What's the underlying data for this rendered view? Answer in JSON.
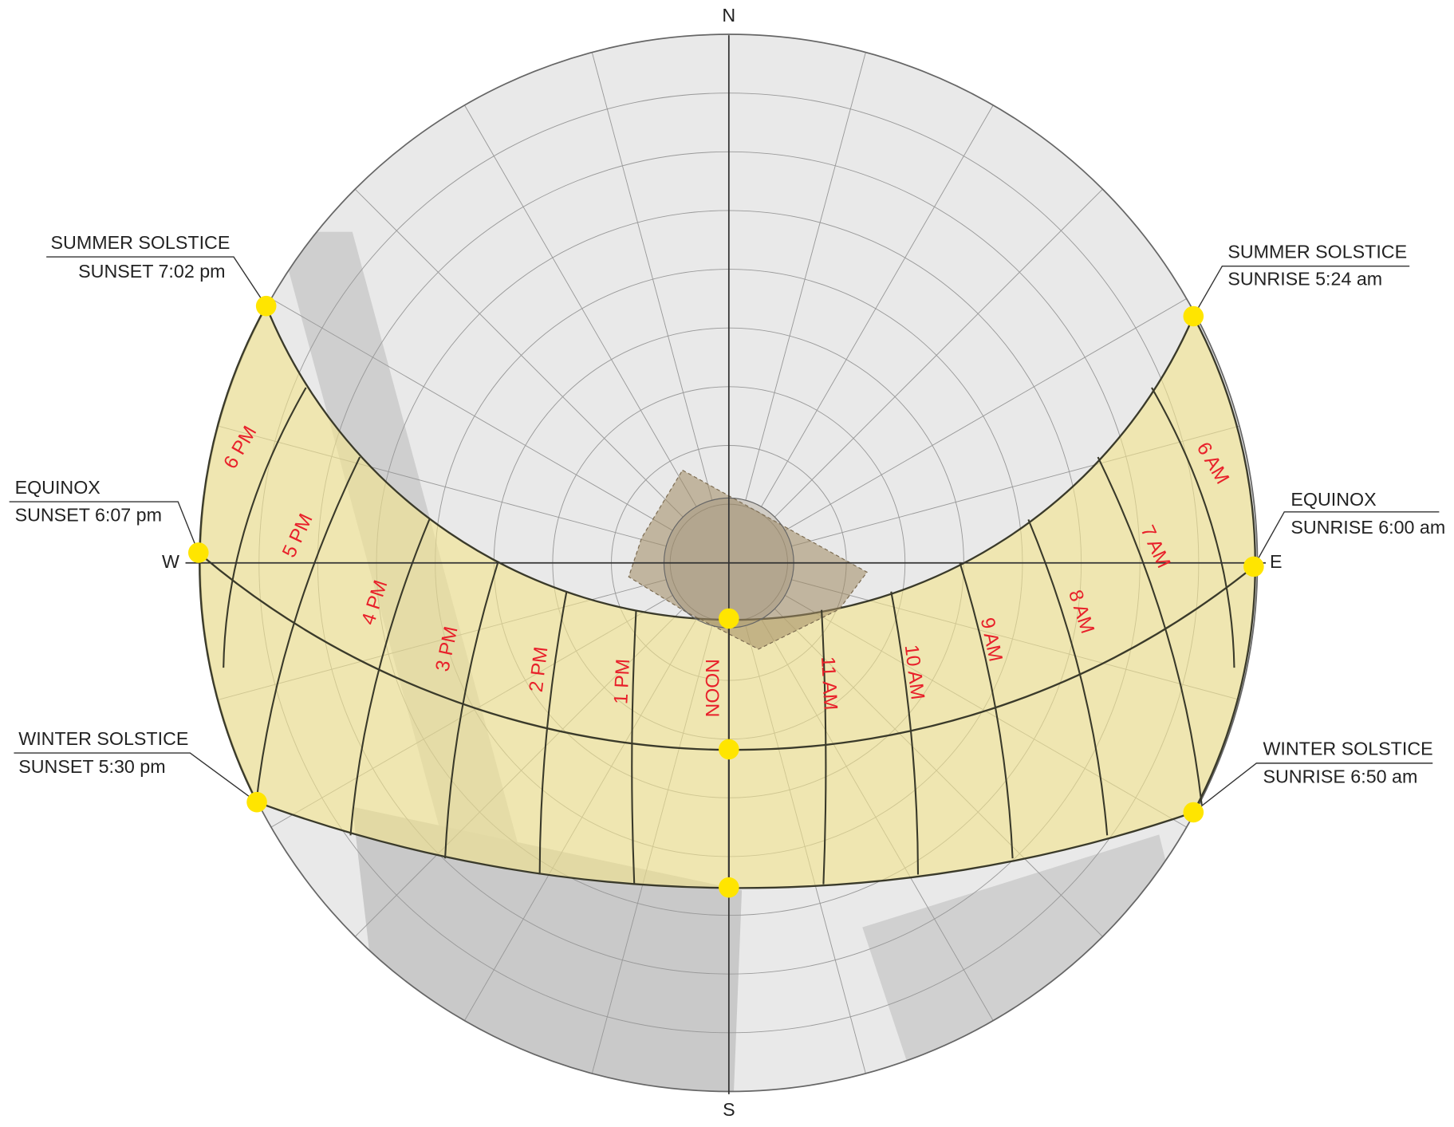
{
  "compass": {
    "north": "N",
    "south": "S",
    "west": "W",
    "east": "E"
  },
  "annotations": [
    {
      "title": "SUMMER SOLSTICE",
      "detail": "SUNSET 7:02 pm"
    },
    {
      "title": "EQUINOX",
      "detail": "SUNSET 6:07 pm"
    },
    {
      "title": "WINTER SOLSTICE",
      "detail": "SUNSET 5:30 pm"
    },
    {
      "title": "SUMMER SOLSTICE",
      "detail": "SUNRISE 5:24 am"
    },
    {
      "title": "EQUINOX",
      "detail": "SUNRISE 6:00 am"
    },
    {
      "title": "WINTER SOLSTICE",
      "detail": "SUNRISE 6:50 am"
    }
  ],
  "hours": [
    "6 PM",
    "5 PM",
    "4 PM",
    "3 PM",
    "2 PM",
    "1 PM",
    "NOON",
    "11 AM",
    "10 AM",
    "9 AM",
    "8 AM",
    "7 AM",
    "6 AM"
  ]
}
